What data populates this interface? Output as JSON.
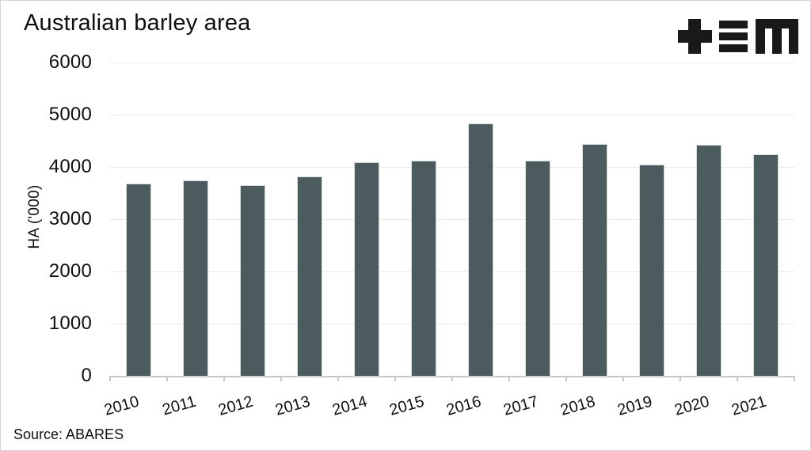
{
  "title": "Australian barley area",
  "logo": {
    "alt": "plus-triplebar-m logo",
    "color": "#191919"
  },
  "chart_data": {
    "type": "bar",
    "title": "Australian barley area",
    "categories": [
      "2010",
      "2011",
      "2012",
      "2013",
      "2014",
      "2015",
      "2016",
      "2017",
      "2018",
      "2019",
      "2020",
      "2021"
    ],
    "values": [
      3670,
      3730,
      3640,
      3810,
      4070,
      4100,
      4820,
      4110,
      4430,
      4030,
      4410,
      4230
    ],
    "xlabel": "",
    "ylabel": "HA ('000)",
    "ylim": [
      0,
      6000
    ],
    "yticks": [
      0,
      1000,
      2000,
      3000,
      4000,
      5000,
      6000
    ],
    "bar_color": "#4c5c5e",
    "gridline_color": "#e9e9e9",
    "axis_color": "#c5c8c8",
    "grid": true,
    "legend_position": "none"
  },
  "footer": {
    "source": "Source: ABARES"
  }
}
